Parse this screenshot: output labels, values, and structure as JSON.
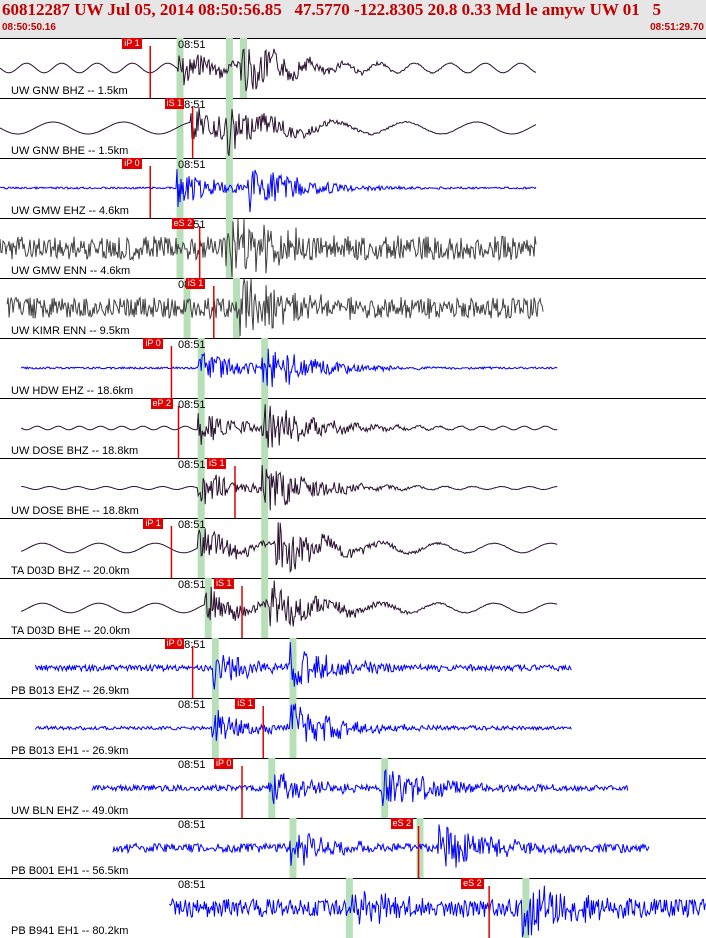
{
  "header": {
    "title": "60812287 UW Jul 05, 2014 08:50:56.85   47.5770 -122.8305 20.8 0.33 Md le amyw UW 01   5",
    "start_time": "08:50:50.16",
    "end_time": "08:51:29.70"
  },
  "time_tick_label": "08:51",
  "colors": {
    "header_text": "#c00000",
    "pick_box": "#e00000",
    "window_bar": "#b8e0b8",
    "trace_blue": "#0000ff",
    "trace_dark": "#2a1030",
    "trace_gray": "#404040",
    "pick_line": "#e00000"
  },
  "panels": [
    {
      "station": "UW GNW BHZ -- 1.5km",
      "color": "dark",
      "start": 0.0,
      "end": 0.76,
      "amp": 0.16,
      "period": 0.05,
      "kind": "smooth",
      "p": 0.25,
      "s": 0.34,
      "pick": "iP 1",
      "pick_at": 0.21,
      "bars": [
        0.25,
        0.32,
        0.34
      ]
    },
    {
      "station": "UW GNW BHE -- 1.5km",
      "color": "dark",
      "start": 0.0,
      "end": 0.76,
      "amp": 0.2,
      "period": 0.1,
      "kind": "smooth",
      "p": 0.27,
      "s": 0.31,
      "pick": "iS 1",
      "pick_at": 0.27,
      "bars": [
        0.25,
        0.32
      ]
    },
    {
      "station": "UW GMW EHZ -- 4.6km",
      "color": "blue",
      "start": 0.0,
      "end": 0.76,
      "amp": 0.03,
      "period": 0.02,
      "kind": "flat",
      "p": 0.25,
      "s": 0.35,
      "pick": "iP 0",
      "pick_at": 0.21,
      "bars": [
        0.25,
        0.32
      ]
    },
    {
      "station": "UW GMW ENN -- 4.6km",
      "color": "gray",
      "start": 0.0,
      "end": 0.76,
      "amp": 0.4,
      "period": 0.01,
      "kind": "noise",
      "p": 0.32,
      "s": 0.32,
      "pick": "eS 2",
      "pick_at": 0.28,
      "bars": [
        0.25,
        0.32
      ]
    },
    {
      "station": "UW KIMR ENN -- 9.5km",
      "color": "gray",
      "start": 0.01,
      "end": 0.77,
      "amp": 0.35,
      "period": 0.01,
      "kind": "noise",
      "p": 0.34,
      "s": 0.34,
      "pick": "iS 1",
      "pick_at": 0.3,
      "bars": [
        0.26,
        0.33
      ]
    },
    {
      "station": "UW HDW EHZ -- 18.6km",
      "color": "blue",
      "start": 0.03,
      "end": 0.79,
      "amp": 0.02,
      "period": 0.02,
      "kind": "flat",
      "p": 0.28,
      "s": 0.37,
      "pick": "iP 0",
      "pick_at": 0.24,
      "bars": [
        0.28,
        0.37
      ]
    },
    {
      "station": "UW DOSE BHZ -- 18.8km",
      "color": "dark",
      "start": 0.03,
      "end": 0.79,
      "amp": 0.06,
      "period": 0.03,
      "kind": "smooth",
      "p": 0.28,
      "s": 0.37,
      "pick": "eP 2",
      "pick_at": 0.25,
      "bars": [
        0.28,
        0.37
      ]
    },
    {
      "station": "UW DOSE BHE -- 18.8km",
      "color": "dark",
      "start": 0.03,
      "end": 0.79,
      "amp": 0.05,
      "period": 0.04,
      "kind": "smooth",
      "p": 0.28,
      "s": 0.37,
      "pick": "iS 1",
      "pick_at": 0.33,
      "bars": [
        0.28,
        0.37
      ]
    },
    {
      "station": "TA D03D BHZ -- 20.0km",
      "color": "dark",
      "start": 0.03,
      "end": 0.79,
      "amp": 0.16,
      "period": 0.08,
      "kind": "smooth",
      "p": 0.28,
      "s": 0.39,
      "pick": "iP 1",
      "pick_at": 0.24,
      "bars": [
        0.28,
        0.37
      ]
    },
    {
      "station": "TA D03D BHE -- 20.0km",
      "color": "dark",
      "start": 0.03,
      "end": 0.79,
      "amp": 0.16,
      "period": 0.08,
      "kind": "smooth",
      "p": 0.29,
      "s": 0.38,
      "pick": "iS 1",
      "pick_at": 0.34,
      "bars": [
        0.29,
        0.37
      ]
    },
    {
      "station": "PB B013 EHZ -- 26.9km",
      "color": "blue",
      "start": 0.05,
      "end": 0.81,
      "amp": 0.1,
      "period": 0.01,
      "kind": "noise",
      "p": 0.3,
      "s": 0.41,
      "pick": "iP 0",
      "pick_at": 0.27,
      "bars": [
        0.3,
        0.41
      ]
    },
    {
      "station": "PB B013 EH1 -- 26.9km",
      "color": "blue",
      "start": 0.05,
      "end": 0.81,
      "amp": 0.06,
      "period": 0.01,
      "kind": "noise",
      "p": 0.3,
      "s": 0.41,
      "pick": "iS 1",
      "pick_at": 0.37,
      "bars": [
        0.3,
        0.41
      ]
    },
    {
      "station": "UW BLN EHZ -- 49.0km",
      "color": "blue",
      "start": 0.13,
      "end": 0.89,
      "amp": 0.1,
      "period": 0.01,
      "kind": "noise",
      "p": 0.38,
      "s": 0.54,
      "pick": "iP 0",
      "pick_at": 0.34,
      "bars": [
        0.38,
        0.54
      ]
    },
    {
      "station": "PB B001 EH1 -- 56.5km",
      "color": "blue",
      "start": 0.16,
      "end": 0.92,
      "amp": 0.15,
      "period": 0.01,
      "kind": "noise",
      "p": 0.41,
      "s": 0.62,
      "pick": "eS 2",
      "pick_at": 0.59,
      "bars": [
        0.41,
        0.59
      ]
    },
    {
      "station": "PB B941 EH1 -- 80.2km",
      "color": "blue",
      "start": 0.24,
      "end": 1.0,
      "amp": 0.3,
      "period": 0.01,
      "kind": "noise",
      "p": 0.49,
      "s": 0.74,
      "pick": "eS 2",
      "pick_at": 0.69,
      "bars": [
        0.49,
        0.74
      ]
    }
  ]
}
